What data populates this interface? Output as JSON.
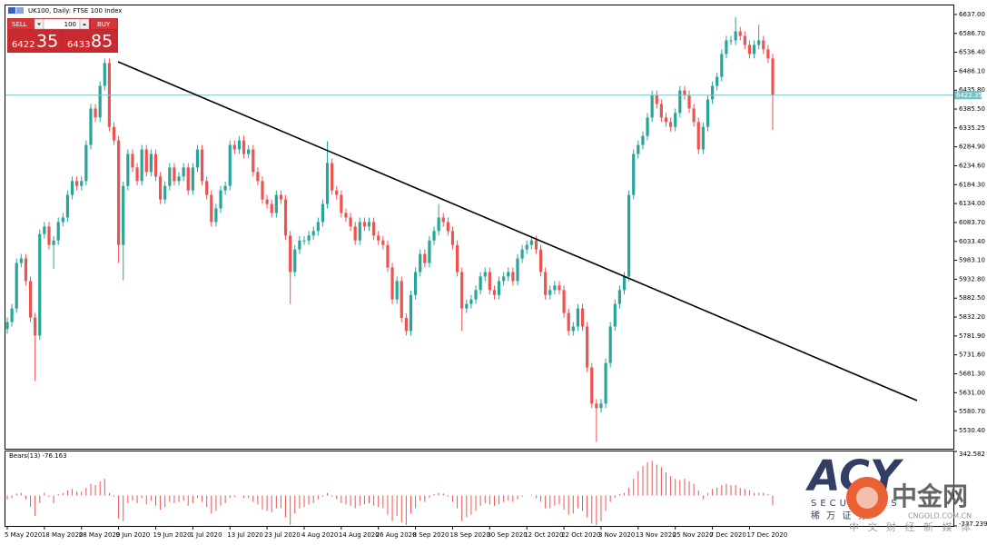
{
  "header": {
    "title": "UK100, Daily: FTSE 100 Index"
  },
  "trade_panel": {
    "sell": "SELL",
    "lot": 100,
    "buy": "BUY",
    "sell_main": 6422,
    "sell_big": 35,
    "buy_main": 6433,
    "buy_big": 85
  },
  "chart_data": [
    {
      "type": "candlestick",
      "categories": [
        "5 May 2020",
        null,
        null,
        null,
        null,
        null,
        null,
        null,
        "18 May 2020",
        null,
        null,
        null,
        null,
        null,
        null,
        null,
        "28 May 2020",
        null,
        null,
        null,
        null,
        null,
        null,
        null,
        "9 Jun 2020",
        null,
        null,
        null,
        null,
        null,
        null,
        null,
        "19 Jun 2020",
        null,
        null,
        null,
        null,
        null,
        null,
        null,
        "1 Jul 2020",
        null,
        null,
        null,
        null,
        null,
        null,
        null,
        "13 Jul 2020",
        null,
        null,
        null,
        null,
        null,
        null,
        null,
        "23 Jul 2020",
        null,
        null,
        null,
        null,
        null,
        null,
        null,
        "4 Aug 2020",
        null,
        null,
        null,
        null,
        null,
        null,
        null,
        "14 Aug 2020",
        null,
        null,
        null,
        null,
        null,
        null,
        null,
        "26 Aug 2020",
        null,
        null,
        null,
        null,
        null,
        null,
        null,
        "8 Sep 2020",
        null,
        null,
        null,
        null,
        null,
        null,
        null,
        "18 Sep 2020",
        null,
        null,
        null,
        null,
        null,
        null,
        null,
        "30 Sep 2020",
        null,
        null,
        null,
        null,
        null,
        null,
        null,
        "12 Oct 2020",
        null,
        null,
        null,
        null,
        null,
        null,
        null,
        "22 Oct 2020",
        null,
        null,
        null,
        null,
        null,
        null,
        null,
        "3 Nov 2020",
        null,
        null,
        null,
        null,
        null,
        null,
        null,
        "13 Nov 2020",
        null,
        null,
        null,
        null,
        null,
        null,
        null,
        "25 Nov 2020",
        null,
        null,
        null,
        null,
        null,
        null,
        null,
        "7 Dec 2020",
        null,
        null,
        null,
        null,
        null,
        null,
        null,
        "17 Dec 2020",
        null,
        null,
        null,
        null,
        null
      ],
      "open": [
        5800,
        5819,
        5855,
        5976,
        5988,
        5928,
        5831,
        5783,
        6053,
        6073,
        6024,
        6036,
        6085,
        6097,
        6157,
        6194,
        6181,
        6194,
        6290,
        6387,
        6363,
        6447,
        6508,
        6338,
        6302,
        6024,
        6181,
        6266,
        6230,
        6194,
        6278,
        6218,
        6266,
        6206,
        6145,
        6181,
        6230,
        6194,
        6206,
        6230,
        6169,
        6230,
        6278,
        6194,
        6157,
        6085,
        6121,
        6169,
        6181,
        6290,
        6278,
        6302,
        6266,
        6278,
        6218,
        6194,
        6145,
        6133,
        6109,
        6157,
        6145,
        6049,
        5952,
        6012,
        6036,
        6036,
        6049,
        6061,
        6085,
        6133,
        6242,
        6169,
        6157,
        6109,
        6097,
        6073,
        6036,
        6085,
        6073,
        6085,
        6049,
        6036,
        6024,
        5964,
        5879,
        5928,
        5830,
        5795,
        5891,
        5952,
        6000,
        5976,
        6036,
        6061,
        6097,
        6085,
        6061,
        6024,
        5952,
        5855,
        5867,
        5879,
        5904,
        5940,
        5952,
        5904,
        5891,
        5928,
        5940,
        5952,
        5928,
        5988,
        6012,
        6024,
        6036,
        6012,
        5952,
        5891,
        5904,
        5916,
        5904,
        5843,
        5795,
        5807,
        5855,
        5807,
        5698,
        5602,
        5590,
        5602,
        5710,
        5807,
        5867,
        5904,
        5940,
        6157,
        6266,
        6290,
        6314,
        6363,
        6423,
        6399,
        6363,
        6351,
        6338,
        6375,
        6435,
        6423,
        6387,
        6351,
        6278,
        6338,
        6411,
        6447,
        6471,
        6532,
        6568,
        6568,
        6592,
        6580,
        6556,
        6532,
        6556,
        6568,
        6544,
        6520
      ],
      "high": [
        5831,
        5867,
        5988,
        6000,
        6000,
        5940,
        5843,
        6065,
        6085,
        6085,
        6048,
        6097,
        6109,
        6169,
        6206,
        6206,
        6206,
        6302,
        6399,
        6399,
        6459,
        6520,
        6520,
        6350,
        6314,
        6193,
        6278,
        6278,
        6242,
        6290,
        6290,
        6278,
        6278,
        6218,
        6193,
        6242,
        6242,
        6218,
        6242,
        6242,
        6242,
        6290,
        6290,
        6206,
        6169,
        6133,
        6181,
        6193,
        6302,
        6302,
        6314,
        6314,
        6290,
        6290,
        6230,
        6206,
        6157,
        6145,
        6169,
        6169,
        6157,
        6061,
        6024,
        6048,
        6048,
        6061,
        6073,
        6097,
        6145,
        6300,
        6254,
        6181,
        6169,
        6121,
        6109,
        6085,
        6097,
        6097,
        6097,
        6097,
        6061,
        6048,
        6036,
        5976,
        5940,
        5940,
        5842,
        5903,
        5964,
        6012,
        6012,
        6048,
        6073,
        6133,
        6109,
        6097,
        6073,
        6036,
        5964,
        5879,
        5891,
        5916,
        5952,
        5964,
        5964,
        5916,
        5940,
        5952,
        5964,
        5964,
        6000,
        6024,
        6036,
        6048,
        6048,
        6024,
        5964,
        5916,
        5928,
        5928,
        5916,
        5855,
        5819,
        5867,
        5867,
        5819,
        5710,
        5614,
        5614,
        5722,
        5819,
        5879,
        5916,
        5952,
        6169,
        6278,
        6302,
        6326,
        6375,
        6435,
        6435,
        6411,
        6375,
        6363,
        6387,
        6447,
        6447,
        6435,
        6399,
        6363,
        6350,
        6423,
        6459,
        6483,
        6544,
        6580,
        6580,
        6630,
        6604,
        6592,
        6568,
        6568,
        6610,
        6580,
        6556,
        6532
      ],
      "low": [
        5788,
        5807,
        5843,
        5964,
        5916,
        5819,
        5662,
        5771,
        6041,
        6012,
        5960,
        6024,
        6073,
        6085,
        6145,
        6169,
        6169,
        6182,
        6278,
        6351,
        6351,
        6435,
        6326,
        6290,
        5976,
        5930,
        6169,
        6218,
        6182,
        6182,
        6206,
        6206,
        6194,
        6133,
        6133,
        6169,
        6182,
        6182,
        6194,
        6157,
        6157,
        6218,
        6182,
        6145,
        6073,
        6073,
        6109,
        6157,
        6169,
        6266,
        6266,
        6254,
        6254,
        6206,
        6182,
        6133,
        6121,
        6097,
        6097,
        6133,
        6037,
        5867,
        5940,
        6000,
        6024,
        6024,
        6037,
        6049,
        6073,
        6121,
        6157,
        6145,
        6097,
        6085,
        6061,
        6024,
        6024,
        6061,
        6061,
        6037,
        6024,
        6012,
        5952,
        5867,
        5867,
        5818,
        5783,
        5783,
        5879,
        5940,
        5964,
        5964,
        6024,
        6049,
        6073,
        6049,
        6012,
        5940,
        5795,
        5843,
        5855,
        5867,
        5892,
        5928,
        5892,
        5879,
        5879,
        5916,
        5928,
        5916,
        5916,
        5976,
        6000,
        6012,
        6000,
        5940,
        5879,
        5879,
        5892,
        5892,
        5831,
        5783,
        5783,
        5795,
        5795,
        5686,
        5590,
        5500,
        5578,
        5590,
        5698,
        5795,
        5855,
        5892,
        5928,
        6145,
        6254,
        6278,
        6302,
        6351,
        6387,
        6351,
        6339,
        6326,
        6326,
        6363,
        6411,
        6375,
        6339,
        6266,
        6266,
        6326,
        6399,
        6435,
        6459,
        6520,
        6556,
        6556,
        6568,
        6544,
        6520,
        6520,
        6544,
        6532,
        6508,
        6330
      ],
      "close": [
        5819,
        5855,
        5976,
        5988,
        5928,
        5831,
        5783,
        6053,
        6073,
        6024,
        6036,
        6085,
        6097,
        6157,
        6194,
        6181,
        6194,
        6290,
        6387,
        6363,
        6447,
        6508,
        6338,
        6302,
        6024,
        6181,
        6266,
        6230,
        6194,
        6278,
        6218,
        6266,
        6206,
        6145,
        6181,
        6230,
        6194,
        6206,
        6230,
        6169,
        6230,
        6278,
        6194,
        6157,
        6085,
        6121,
        6169,
        6181,
        6290,
        6278,
        6302,
        6266,
        6278,
        6218,
        6194,
        6145,
        6133,
        6109,
        6157,
        6145,
        6049,
        5952,
        6012,
        6036,
        6036,
        6049,
        6061,
        6085,
        6133,
        6242,
        6169,
        6157,
        6109,
        6097,
        6073,
        6036,
        6085,
        6073,
        6085,
        6049,
        6036,
        6024,
        5964,
        5879,
        5928,
        5830,
        5795,
        5891,
        5952,
        6000,
        5976,
        6036,
        6061,
        6097,
        6085,
        6061,
        6024,
        5952,
        5855,
        5867,
        5879,
        5904,
        5940,
        5952,
        5904,
        5891,
        5928,
        5940,
        5952,
        5928,
        5988,
        6012,
        6024,
        6036,
        6012,
        5952,
        5891,
        5904,
        5916,
        5904,
        5843,
        5795,
        5807,
        5855,
        5807,
        5698,
        5602,
        5590,
        5602,
        5710,
        5807,
        5867,
        5904,
        5940,
        6157,
        6266,
        6290,
        6314,
        6363,
        6423,
        6399,
        6363,
        6351,
        6338,
        6375,
        6435,
        6423,
        6387,
        6351,
        6278,
        6338,
        6411,
        6447,
        6471,
        6532,
        6568,
        6568,
        6592,
        6580,
        6556,
        6532,
        6556,
        6568,
        6544,
        6520,
        6422.35
      ],
      "up_color": "#26a69a",
      "down_color": "#ef5350",
      "current_price": 6422.35,
      "current_price_color": "#6cc5c9",
      "ylim": [
        5482,
        6661
      ],
      "yticks": [
        {
          "value": 6637,
          "label": "6637.00"
        },
        {
          "value": 6586.7,
          "label": "6586.70"
        },
        {
          "value": 6536.4,
          "label": "6536.40"
        },
        {
          "value": 6486.1,
          "label": "6486.10"
        },
        {
          "value": 6435.8,
          "label": "6435.80"
        },
        {
          "value": 6385.5,
          "label": "6385.50"
        },
        6335.25,
        {
          "value": 6284.9,
          "label": "6284.90"
        },
        {
          "value": 6234.6,
          "label": "6234.60"
        },
        {
          "value": 6184.3,
          "label": "6184.30"
        },
        {
          "value": 6134,
          "label": "6134.00"
        },
        {
          "value": 6083.7,
          "label": "6083.70"
        },
        {
          "value": 6033.4,
          "label": "6033.40"
        },
        {
          "value": 5983.1,
          "label": "5983.10"
        },
        {
          "value": 5932.8,
          "label": "5932.80"
        },
        {
          "value": 5882.5,
          "label": "5882.50"
        },
        {
          "value": 5832.2,
          "label": "5832.20"
        },
        {
          "value": 5781.9,
          "label": "5781.90"
        },
        {
          "value": 5731.6,
          "label": "5731.60"
        },
        {
          "value": 5681.3,
          "label": "5681.30"
        },
        {
          "value": 5631,
          "label": "5631.00"
        },
        {
          "value": 5580.7,
          "label": "5580.70"
        },
        {
          "value": 5530.4,
          "label": "5530.40"
        }
      ]
    },
    {
      "type": "bar",
      "title": "Bears(13) -76.163",
      "color": "#ef5350",
      "values": [
        -30,
        -20,
        15,
        20,
        -30,
        -90,
        -160,
        -60,
        20,
        -10,
        -60,
        10,
        20,
        40,
        50,
        30,
        30,
        60,
        90,
        80,
        110,
        130,
        20,
        -10,
        -180,
        -200,
        -60,
        -40,
        -60,
        -20,
        -70,
        -40,
        -80,
        -110,
        -90,
        -50,
        -60,
        -50,
        -40,
        -80,
        -60,
        -20,
        -50,
        -90,
        -140,
        -120,
        -80,
        -60,
        -20,
        -10,
        0,
        -20,
        -20,
        -50,
        -70,
        -110,
        -120,
        -130,
        -100,
        -100,
        -170,
        -230,
        -140,
        -100,
        -90,
        -70,
        -60,
        -30,
        -10,
        20,
        -10,
        -30,
        -60,
        -70,
        -80,
        -100,
        -80,
        -70,
        -60,
        -80,
        -90,
        -100,
        -150,
        -200,
        -160,
        -210,
        -230,
        -140,
        -100,
        -40,
        -50,
        -20,
        10,
        20,
        15,
        -10,
        -50,
        -100,
        -200,
        -170,
        -150,
        -120,
        -80,
        -60,
        -70,
        -80,
        -70,
        -50,
        -40,
        -50,
        -30,
        -10,
        0,
        5,
        -20,
        -50,
        -100,
        -100,
        -80,
        -70,
        -110,
        -150,
        -140,
        -100,
        -120,
        -170,
        -220,
        -230,
        -200,
        -120,
        -50,
        -20,
        10,
        20,
        60,
        130,
        190,
        230,
        260,
        270,
        240,
        220,
        180,
        150,
        130,
        120,
        130,
        110,
        90,
        40,
        -30,
        20,
        50,
        60,
        80,
        90,
        80,
        80,
        60,
        50,
        40,
        20,
        20,
        20,
        10,
        -76.163
      ],
      "ylim": [
        -237.239,
        342.582
      ],
      "yticks": [
        342.582,
        -237.239
      ]
    }
  ],
  "watermarks": {
    "acy": "ACY",
    "securities": "SECURITIES",
    "acy_cn": "稀 万 证 券",
    "cngold": "中金网",
    "cngold_url": "CNGOLD.COM.CN",
    "cngold_slogan": "中 文 财 经 新 媒 体"
  }
}
